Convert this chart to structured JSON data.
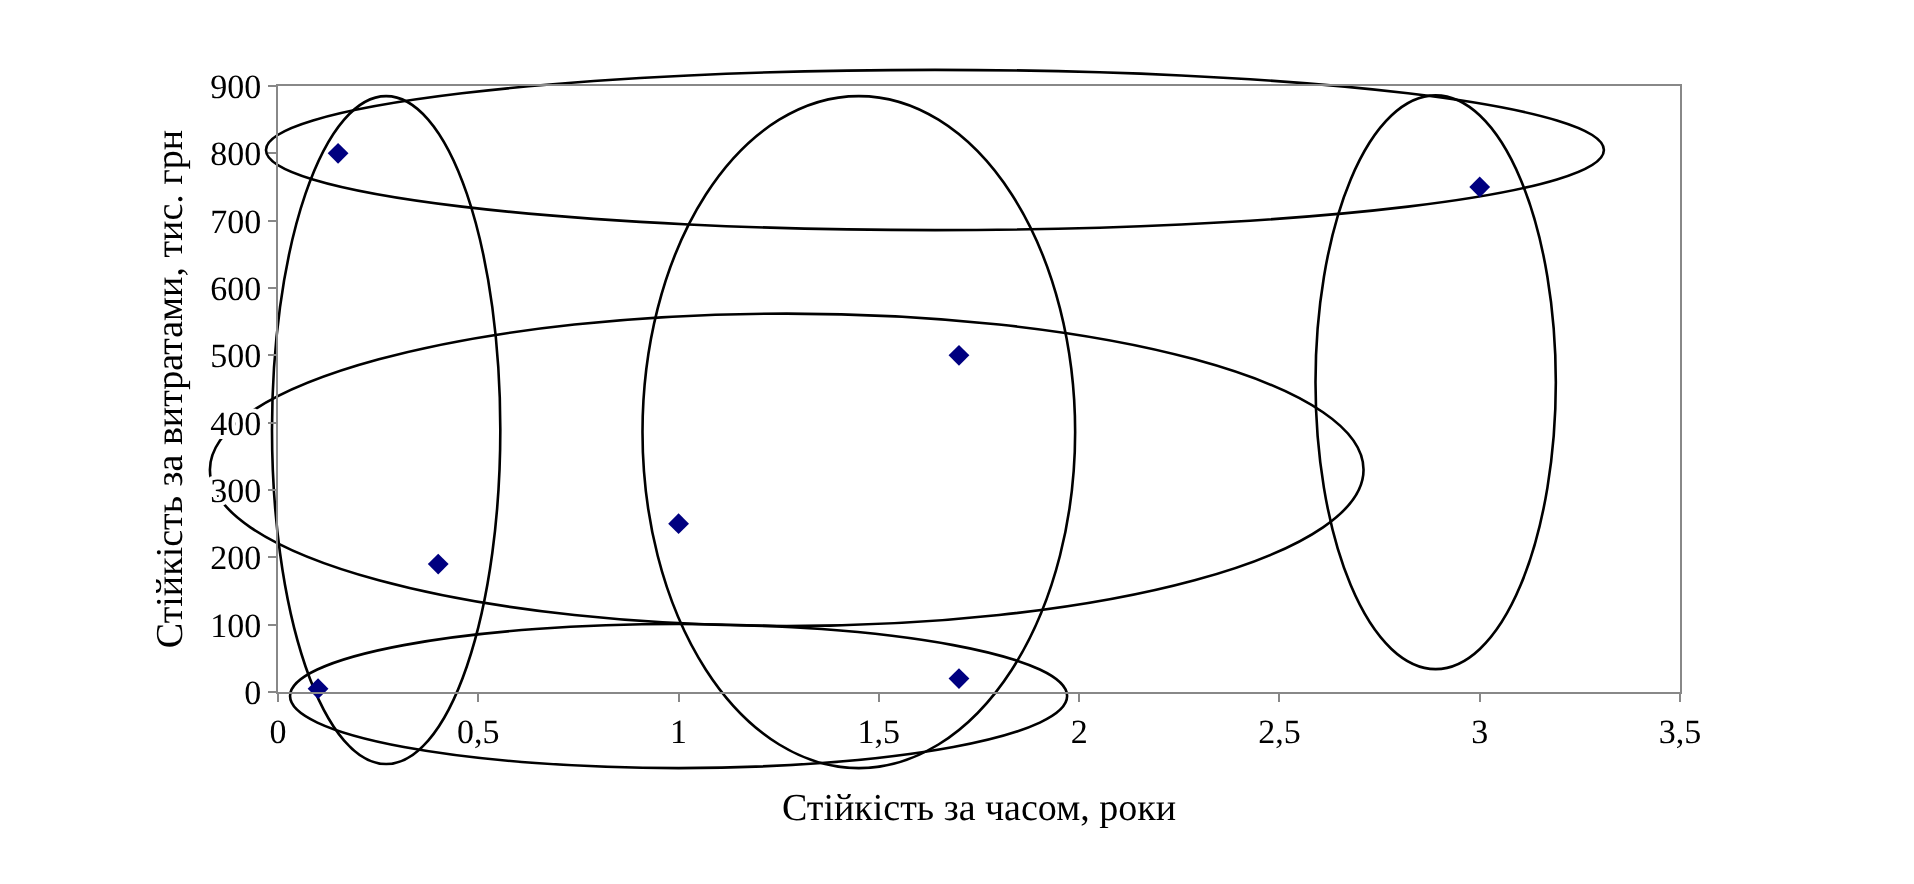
{
  "chart_data": {
    "type": "scatter",
    "xlabel": "Стійкість за часом, роки",
    "ylabel": "Стійкість за витратами, тис. грн",
    "x": [
      0.15,
      0.4,
      0.1,
      1.0,
      1.7,
      1.7,
      3.0
    ],
    "series": [
      {
        "color": "#000080",
        "values": [
          800,
          190,
          5,
          250,
          500,
          20,
          750
        ]
      }
    ],
    "xlim": [
      0,
      3.5
    ],
    "xticks": [
      0,
      {
        "value": 0.5,
        "label": "0,5"
      },
      1,
      {
        "value": 1.5,
        "label": "1,5"
      },
      2,
      {
        "value": 2.5,
        "label": "2,5"
      },
      3,
      {
        "value": 3.5,
        "label": "3,5"
      }
    ],
    "ylim": [
      0,
      900
    ],
    "yticks": [
      0,
      100,
      200,
      300,
      400,
      500,
      600,
      700,
      800,
      900
    ],
    "grid": false,
    "legend": false,
    "marker": "diamond"
  }
}
